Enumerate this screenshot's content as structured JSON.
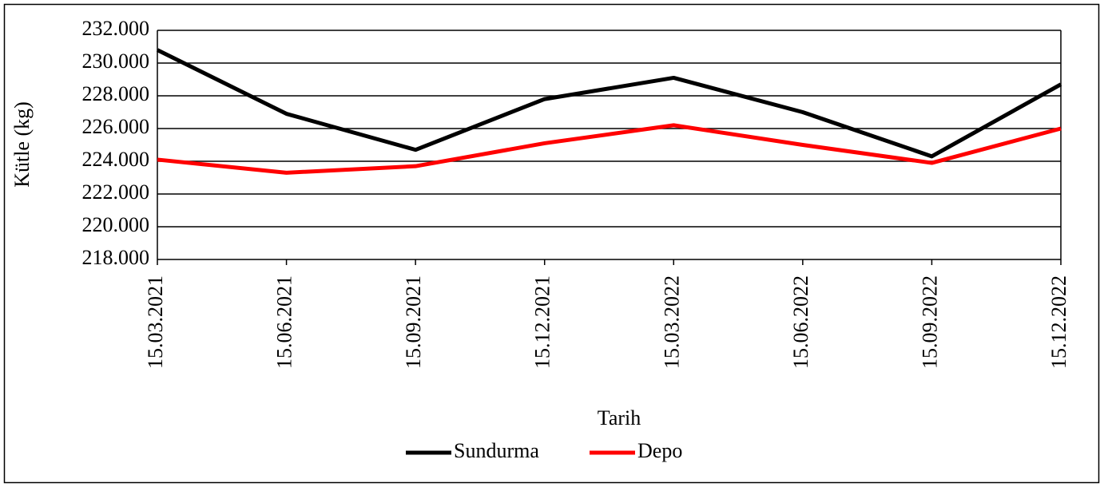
{
  "chart_data": {
    "type": "line",
    "xlabel": "Tarih",
    "ylabel": "Kütle (kg)",
    "categories": [
      "15.03.2021",
      "15.06.2021",
      "15.09.2021",
      "15.12.2021",
      "15.03.2022",
      "15.06.2022",
      "15.09.2022",
      "15.12.2022"
    ],
    "series": [
      {
        "name": "Sundurma",
        "color": "#000000",
        "values": [
          230800,
          226900,
          224700,
          227800,
          229100,
          227000,
          224300,
          228700
        ]
      },
      {
        "name": "Depo",
        "color": "#ff0000",
        "values": [
          224100,
          223300,
          223700,
          225100,
          226200,
          225000,
          223900,
          226000
        ]
      }
    ],
    "ylim": [
      218000,
      232000
    ],
    "yticks": [
      {
        "value": 218000,
        "label": "218.000"
      },
      {
        "value": 220000,
        "label": "220.000"
      },
      {
        "value": 222000,
        "label": "222.000"
      },
      {
        "value": 224000,
        "label": "224.000"
      },
      {
        "value": 226000,
        "label": "226.000"
      },
      {
        "value": 228000,
        "label": "228.000"
      },
      {
        "value": 230000,
        "label": "230.000"
      },
      {
        "value": 232000,
        "label": "232.000"
      }
    ],
    "grid": true,
    "legend": "bottom"
  }
}
